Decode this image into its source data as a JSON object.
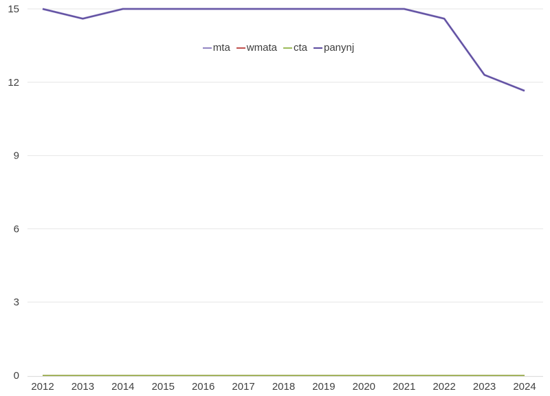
{
  "chart": {
    "background": "#ffffff",
    "grid_color": "#ebebeb",
    "axis_line_color": "#dedede",
    "tick_label_color": "#404040",
    "legend_text_color": "#3d3d3d"
  },
  "chart_data": {
    "type": "line",
    "title": "",
    "xlabel": "",
    "ylabel": "",
    "x": [
      2012,
      2013,
      2014,
      2015,
      2016,
      2017,
      2018,
      2019,
      2020,
      2021,
      2022,
      2023,
      2024
    ],
    "series": [
      {
        "name": "mta",
        "color": "#9184c2",
        "width": 3,
        "values": [
          15,
          14.6,
          15,
          15,
          15,
          15,
          15,
          15,
          15,
          15,
          14.6,
          12.3,
          11.65
        ]
      },
      {
        "name": "wmata",
        "color": "#c0504d",
        "width": 1.8,
        "values": [
          0,
          0,
          0,
          0,
          0,
          0,
          0,
          0,
          0,
          0,
          0,
          0,
          0
        ]
      },
      {
        "name": "cta",
        "color": "#9bbb59",
        "width": 1.8,
        "values": [
          0,
          0,
          0,
          0,
          0,
          0,
          0,
          0,
          0,
          0,
          0,
          0,
          0
        ]
      },
      {
        "name": "panynj",
        "color": "#5c4b9e",
        "width": 1.6,
        "values": [
          15,
          14.6,
          15,
          15,
          15,
          15,
          15,
          15,
          15,
          15,
          14.6,
          12.3,
          11.65
        ]
      }
    ],
    "yticks": [
      0,
      3,
      6,
      9,
      12,
      15
    ],
    "ylim": [
      0,
      15
    ],
    "grid": "horizontal",
    "legend_position": "top-center"
  }
}
